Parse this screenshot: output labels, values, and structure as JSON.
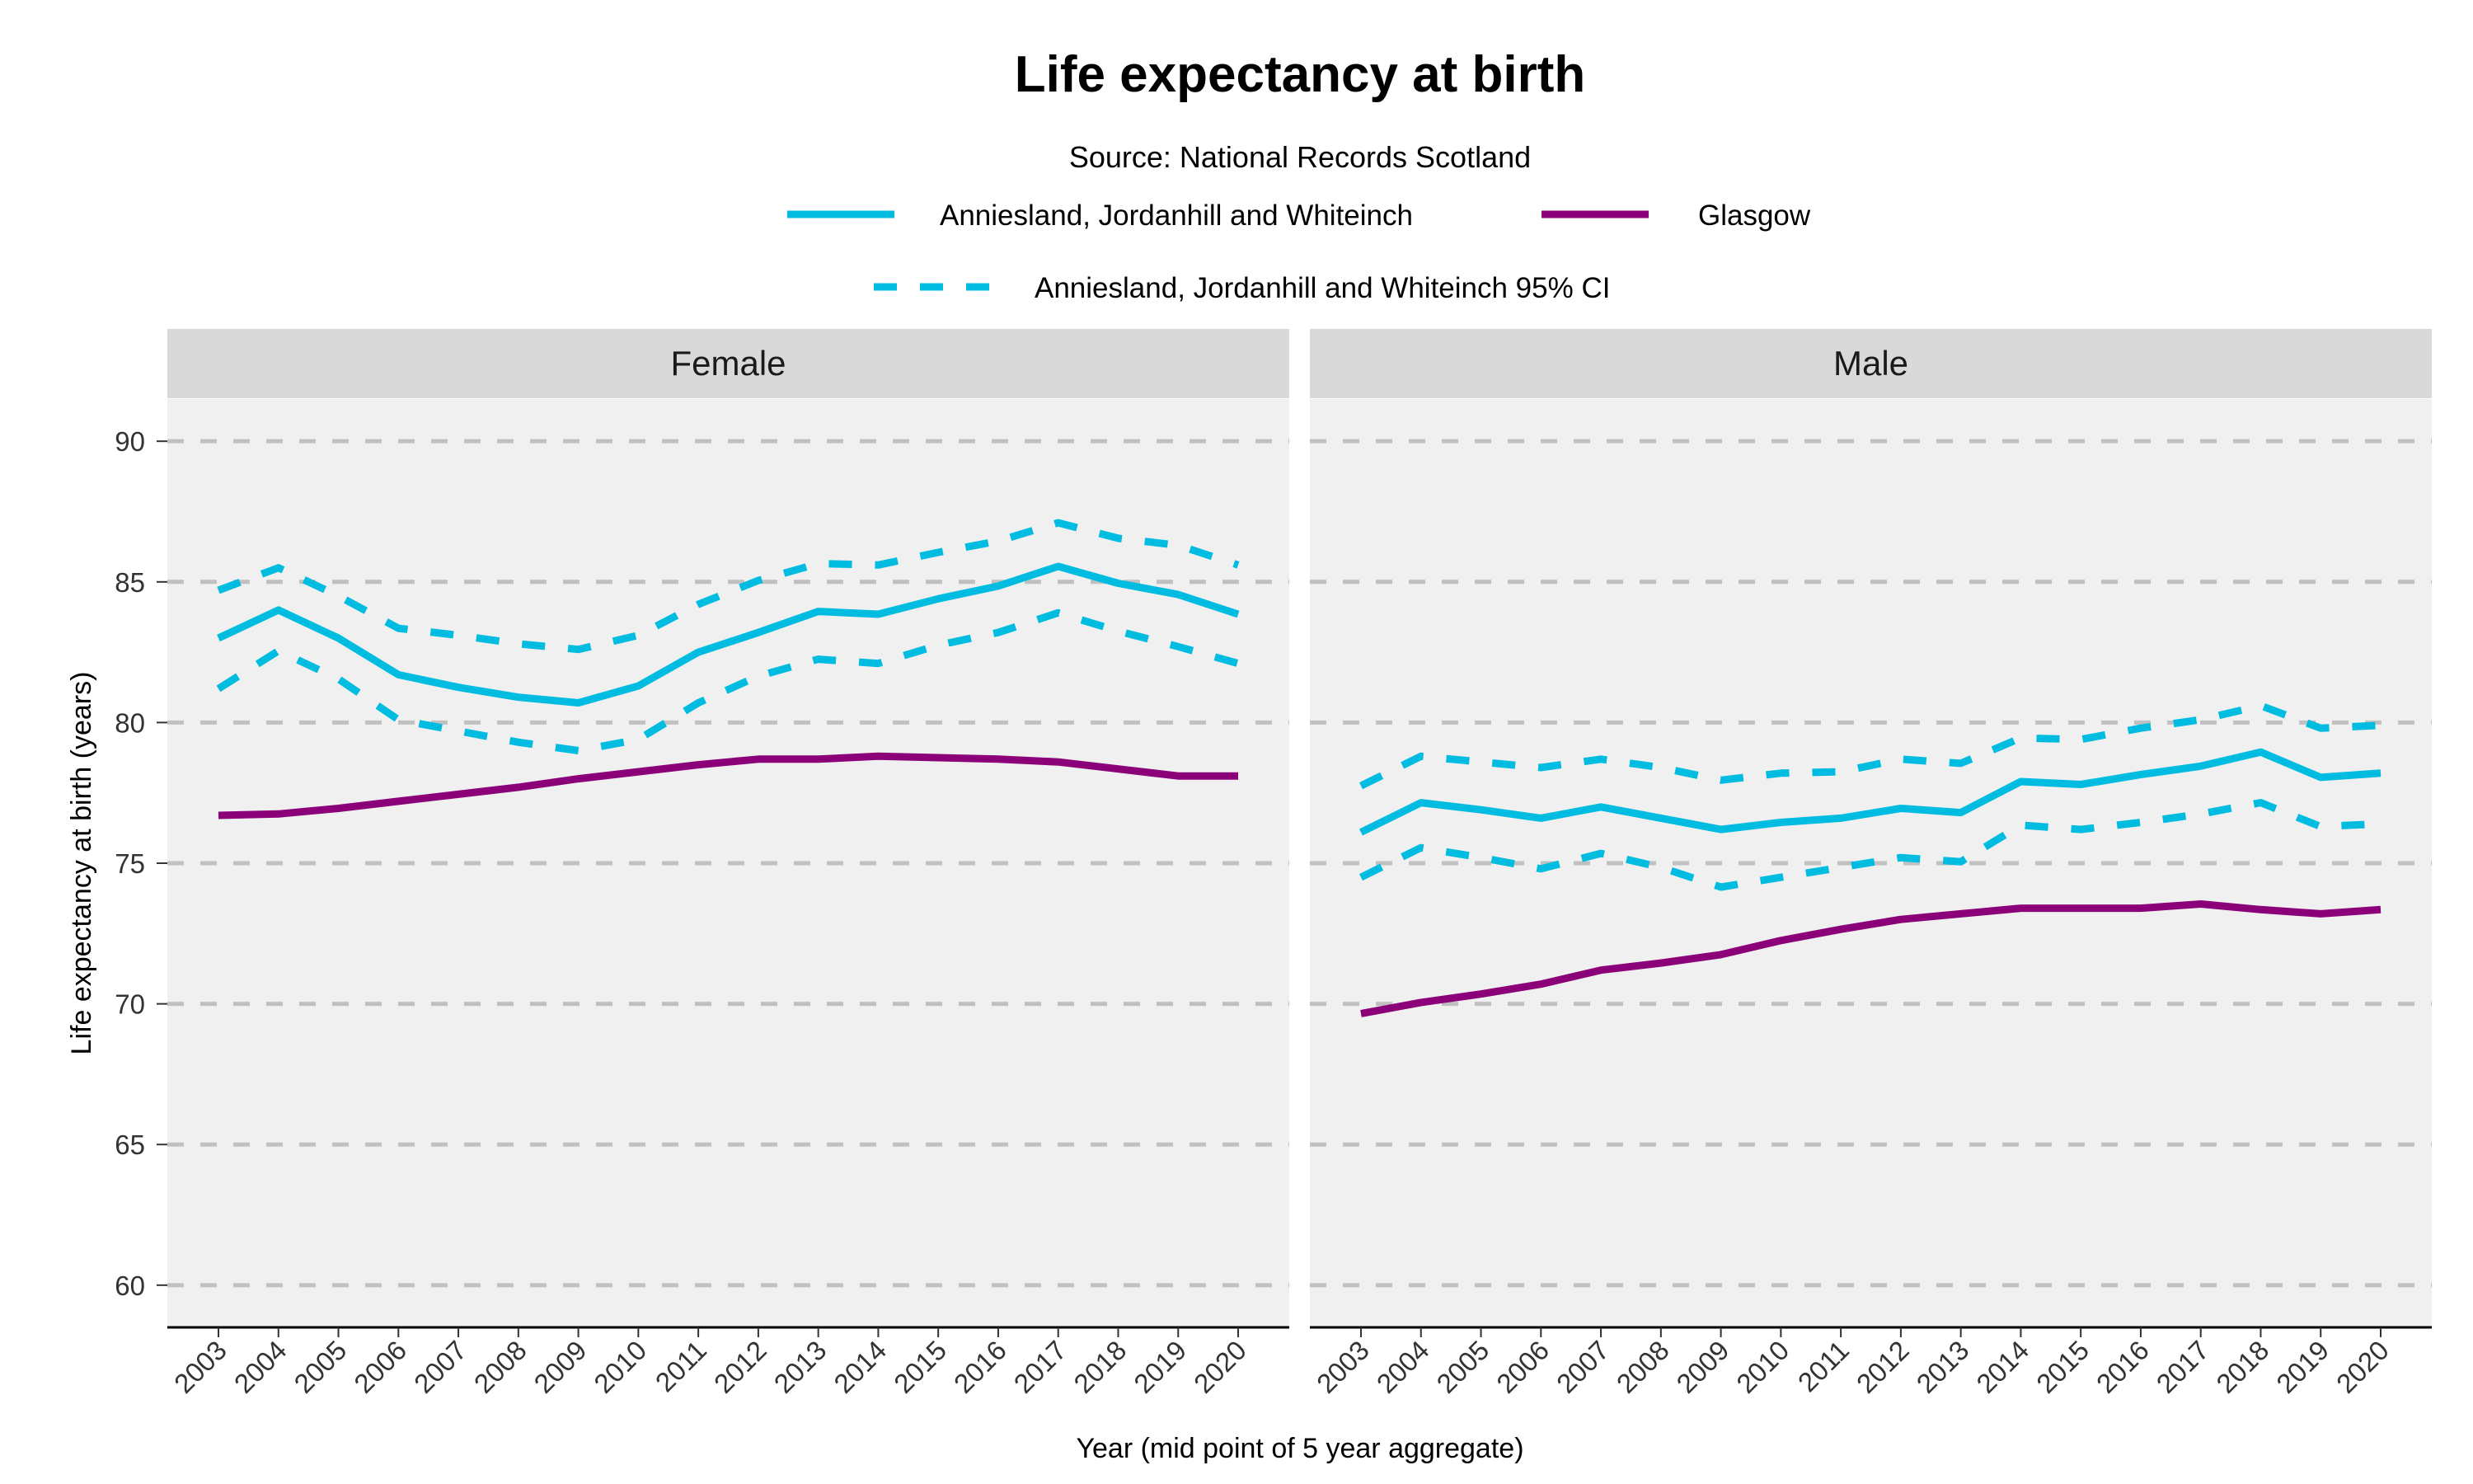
{
  "chart_data": [
    {
      "type": "line",
      "panel": "Female",
      "title": "Life expectancy at birth",
      "subtitle": "Source: National Records Scotland",
      "xlabel": "Year (mid point of 5 year aggregate)",
      "ylabel": "Life expectancy at birth (years)",
      "ylim": [
        58.5,
        91.5
      ],
      "yticks": [
        60,
        65,
        70,
        75,
        80,
        85,
        90
      ],
      "grid": "horizontal dashed",
      "legend": "top",
      "x": [
        2003,
        2004,
        2005,
        2006,
        2007,
        2008,
        2009,
        2010,
        2011,
        2012,
        2013,
        2014,
        2015,
        2016,
        2017,
        2018,
        2019,
        2020
      ],
      "series": [
        {
          "name": "Anniesland, Jordanhill and Whiteinch",
          "color": "#00BCE0",
          "style": "solid",
          "values": [
            83.0,
            84.0,
            83.0,
            81.7,
            81.25,
            80.9,
            80.7,
            81.3,
            82.5,
            83.2,
            83.95,
            83.85,
            84.4,
            84.85,
            85.55,
            84.95,
            84.55,
            83.85
          ]
        },
        {
          "name": "Glasgow",
          "color": "#8B0078",
          "style": "solid",
          "values": [
            76.7,
            76.75,
            76.95,
            77.2,
            77.45,
            77.7,
            78.0,
            78.25,
            78.5,
            78.7,
            78.7,
            78.8,
            78.75,
            78.7,
            78.6,
            78.35,
            78.1,
            78.1
          ]
        },
        {
          "name": "Anniesland, Jordanhill and Whiteinch 95% CI",
          "bound": "upper",
          "color": "#00BCE0",
          "style": "dashed",
          "values": [
            84.7,
            85.5,
            84.5,
            83.35,
            83.1,
            82.8,
            82.6,
            83.1,
            84.2,
            85.05,
            85.65,
            85.6,
            86.05,
            86.45,
            87.1,
            86.55,
            86.3,
            85.6
          ]
        },
        {
          "name": "Anniesland, Jordanhill and Whiteinch 95% CI",
          "bound": "lower",
          "color": "#00BCE0",
          "style": "dashed",
          "values": [
            81.2,
            82.55,
            81.55,
            80.1,
            79.7,
            79.3,
            79.0,
            79.4,
            80.7,
            81.65,
            82.25,
            82.1,
            82.75,
            83.2,
            83.9,
            83.25,
            82.7,
            82.1
          ]
        }
      ]
    },
    {
      "type": "line",
      "panel": "Male",
      "ylim": [
        58.5,
        91.5
      ],
      "x": [
        2003,
        2004,
        2005,
        2006,
        2007,
        2008,
        2009,
        2010,
        2011,
        2012,
        2013,
        2014,
        2015,
        2016,
        2017,
        2018,
        2019,
        2020
      ],
      "series": [
        {
          "name": "Anniesland, Jordanhill and Whiteinch",
          "color": "#00BCE0",
          "style": "solid",
          "values": [
            76.1,
            77.15,
            76.9,
            76.6,
            77.0,
            76.6,
            76.2,
            76.45,
            76.6,
            76.95,
            76.8,
            77.9,
            77.8,
            78.15,
            78.45,
            78.95,
            78.05,
            78.2
          ]
        },
        {
          "name": "Glasgow",
          "color": "#8B0078",
          "style": "solid",
          "values": [
            69.65,
            70.05,
            70.35,
            70.7,
            71.2,
            71.45,
            71.75,
            72.25,
            72.65,
            73.0,
            73.2,
            73.4,
            73.4,
            73.4,
            73.55,
            73.35,
            73.2,
            73.35
          ]
        },
        {
          "name": "Anniesland, Jordanhill and Whiteinch 95% CI",
          "bound": "upper",
          "color": "#00BCE0",
          "style": "dashed",
          "values": [
            77.75,
            78.8,
            78.6,
            78.4,
            78.7,
            78.4,
            77.95,
            78.2,
            78.25,
            78.7,
            78.55,
            79.45,
            79.4,
            79.8,
            80.1,
            80.6,
            79.8,
            79.9
          ]
        },
        {
          "name": "Anniesland, Jordanhill and Whiteinch 95% CI",
          "bound": "lower",
          "color": "#00BCE0",
          "style": "dashed",
          "values": [
            74.5,
            75.55,
            75.2,
            74.8,
            75.35,
            74.85,
            74.15,
            74.5,
            74.85,
            75.2,
            75.05,
            76.35,
            76.2,
            76.45,
            76.75,
            77.15,
            76.3,
            76.4
          ]
        }
      ]
    }
  ],
  "legend": {
    "items": [
      {
        "label": "Anniesland, Jordanhill and Whiteinch",
        "color": "#00BCE0",
        "style": "solid"
      },
      {
        "label": "Glasgow",
        "color": "#8B0078",
        "style": "solid"
      },
      {
        "label": "Anniesland, Jordanhill and Whiteinch 95% CI",
        "color": "#00BCE0",
        "style": "dashed"
      }
    ]
  },
  "panels": [
    "Female",
    "Male"
  ],
  "colors": {
    "panel_bg": "#F0F0F0",
    "strip_bg": "#D9D9D9",
    "grid": "#C0C0C0"
  }
}
